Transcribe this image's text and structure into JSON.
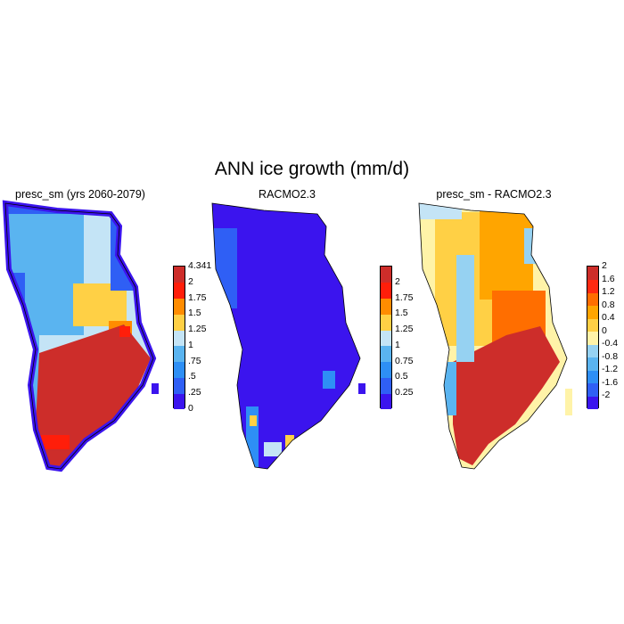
{
  "title": "ANN ice growth (mm/d)",
  "panels": [
    {
      "title": "presc_sm (yrs 2060-2079)",
      "colorbar": {
        "labels": [
          "0",
          ".25",
          ".5",
          ".75",
          "1",
          "1.25",
          "1.5",
          "1.75",
          "2",
          "4.341"
        ],
        "colors": [
          "#3b14ee",
          "#2f5ff5",
          "#2e8ff5",
          "#5ab4f0",
          "#c4e4f6",
          "#ffd045",
          "#ff8c00",
          "#ff1e0a",
          "#cd2d2a"
        ]
      }
    },
    {
      "title": "RACMO2.3",
      "colorbar": {
        "labels": [
          "0.25",
          "0.5",
          "0.75",
          "1",
          "1.25",
          "1.5",
          "1.75",
          "2"
        ],
        "colors": [
          "#3b14ee",
          "#2f5ff5",
          "#2e8ff5",
          "#5ab4f0",
          "#c4e4f6",
          "#ffd045",
          "#ff8c00",
          "#ff1e0a",
          "#cd2d2a"
        ]
      }
    },
    {
      "title": "presc_sm - RACMO2.3",
      "colorbar": {
        "labels": [
          "-2",
          "-1.6",
          "-1.2",
          "-0.8",
          "-0.4",
          "0",
          "0.4",
          "0.8",
          "1.2",
          "1.6",
          "2"
        ],
        "colors": [
          "#3b14ee",
          "#2f5ff5",
          "#2e8ff5",
          "#5ab4f0",
          "#96d2f2",
          "#fff3a8",
          "#ffd045",
          "#ffa500",
          "#ff6e00",
          "#ff2a10",
          "#cd2d2a"
        ]
      }
    }
  ]
}
